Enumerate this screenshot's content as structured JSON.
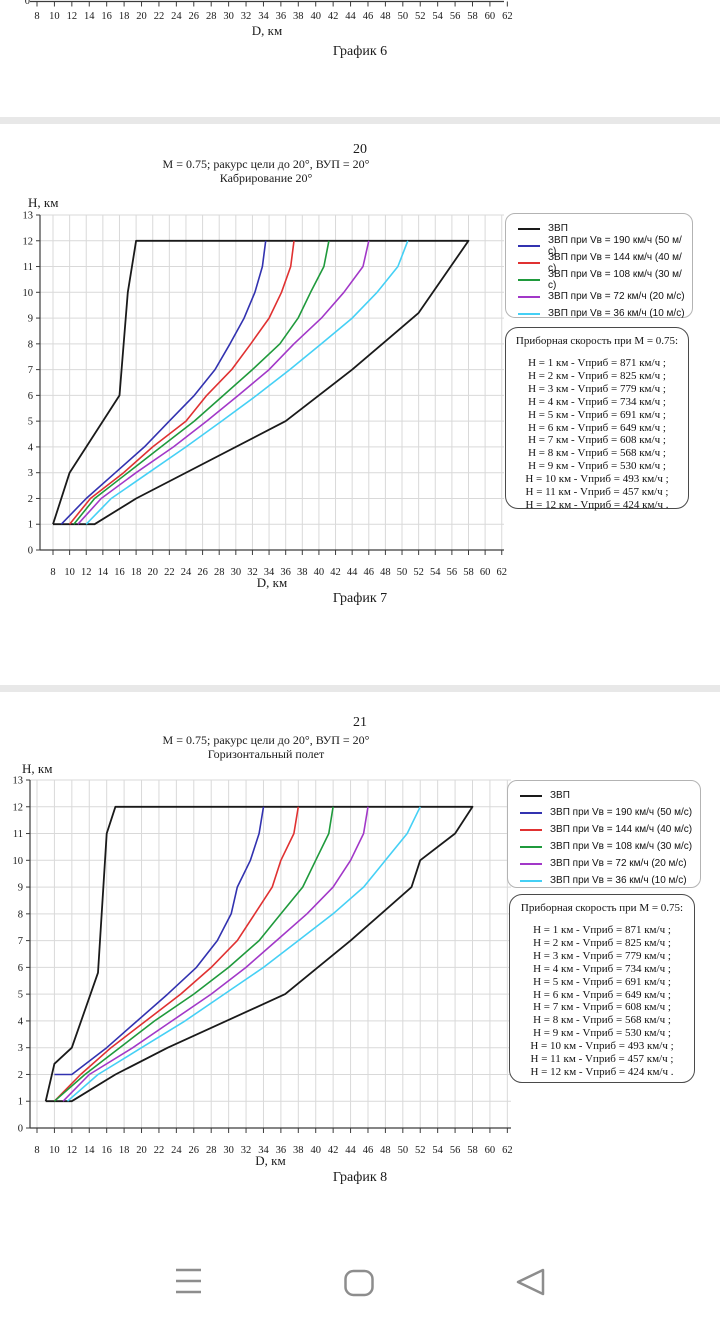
{
  "colors": {
    "zvp": "#1a1a1a",
    "v190": "#3232b0",
    "v144": "#e03131",
    "v108": "#1f9a3c",
    "v72": "#a238c8",
    "v36": "#45d0f5",
    "grid": "#d9d9d9",
    "axis": "#3c3c3c",
    "text": "#1a1a1a",
    "separator": "#e8e8e8",
    "nav_icon": "#8d8d8d"
  },
  "chart6_fragment": {
    "x_ticks": [
      8,
      10,
      12,
      14,
      16,
      18,
      20,
      22,
      24,
      26,
      28,
      30,
      32,
      34,
      36,
      38,
      40,
      42,
      44,
      46,
      48,
      50,
      52,
      54,
      56,
      58,
      60,
      62
    ],
    "xlabel": "D, км",
    "caption": "График 6",
    "clipped_y_tick": "0"
  },
  "page20": {
    "page_number": "20",
    "header_line1": "М = 0.75; ракурс цели до 20°, ВУП = 20°",
    "header_line2": "Кабрирование 20°",
    "caption": "График 7"
  },
  "page21": {
    "page_number": "21",
    "header_line1": "М = 0.75; ракурс цели до 20°, ВУП = 20°",
    "header_line2": "Горизонтальный полет",
    "caption": "График 8"
  },
  "info_box": {
    "title": "Приборная скорость при М = 0.75:",
    "lines": [
      "Н = 1 км - Vприб = 871 км/ч ;",
      "Н = 2 км - Vприб = 825 км/ч ;",
      "Н = 3 км - Vприб = 779 км/ч ;",
      "Н = 4 км - Vприб = 734 км/ч ;",
      "Н = 5 км - Vприб = 691 км/ч ;",
      "Н = 6 км - Vприб = 649 км/ч ;",
      "Н = 7 км - Vприб = 608 км/ч ;",
      "Н = 8 км - Vприб = 568 км/ч ;",
      "Н = 9 км - Vприб = 530 км/ч ;",
      "Н = 10 км - Vприб = 493 км/ч ;",
      "Н = 11 км - Vприб = 457 км/ч ;",
      "Н = 12 км - Vприб = 424 км/ч ."
    ]
  },
  "chart_data": [
    {
      "type": "line",
      "title": "Кабрирование 20°",
      "xlabel": "D, км",
      "ylabel": "Н, км",
      "xlim": [
        6.5,
        62.5
      ],
      "ylim": [
        0,
        13
      ],
      "x_ticks": [
        8,
        10,
        12,
        14,
        16,
        18,
        20,
        22,
        24,
        26,
        28,
        30,
        32,
        34,
        36,
        38,
        40,
        42,
        44,
        46,
        48,
        50,
        52,
        54,
        56,
        58,
        60,
        62
      ],
      "y_ticks": [
        0,
        1,
        2,
        3,
        4,
        5,
        6,
        7,
        8,
        9,
        10,
        11,
        12,
        13
      ],
      "grid": true,
      "legend_position": "right",
      "series": [
        {
          "name": "ЗВП",
          "color_key": "zvp",
          "points": [
            [
              8,
              1
            ],
            [
              13,
              1
            ],
            [
              18,
              2
            ],
            [
              36,
              5
            ],
            [
              44,
              7
            ],
            [
              52,
              9.2
            ],
            [
              58,
              12
            ],
            [
              18,
              12
            ],
            [
              17,
              10
            ],
            [
              16,
              6
            ],
            [
              10,
              3
            ],
            [
              8,
              1
            ]
          ]
        },
        {
          "name": "ЗВП при Vв = 190 км/ч (50 м/с)",
          "color_key": "v190",
          "points": [
            [
              9,
              1
            ],
            [
              12,
              2
            ],
            [
              15.5,
              3
            ],
            [
              19,
              4
            ],
            [
              22,
              5
            ],
            [
              25,
              6
            ],
            [
              27.5,
              7
            ],
            [
              29.3,
              8
            ],
            [
              31,
              9
            ],
            [
              32.3,
              10
            ],
            [
              33.2,
              11
            ],
            [
              33.6,
              12
            ]
          ]
        },
        {
          "name": "ЗВП при Vв = 144 км/ч (40 м/с)",
          "color_key": "v144",
          "points": [
            [
              10,
              1
            ],
            [
              12.5,
              2
            ],
            [
              16.5,
              3
            ],
            [
              20,
              4
            ],
            [
              24,
              5
            ],
            [
              26.5,
              6
            ],
            [
              29.5,
              7
            ],
            [
              31.8,
              8
            ],
            [
              34,
              9
            ],
            [
              35.5,
              10
            ],
            [
              36.6,
              11
            ],
            [
              37,
              12
            ]
          ]
        },
        {
          "name": "ЗВП при Vв = 108 км/ч (30 м/с)",
          "color_key": "v108",
          "points": [
            [
              10.5,
              1
            ],
            [
              13,
              2
            ],
            [
              17,
              3
            ],
            [
              21,
              4
            ],
            [
              25,
              5
            ],
            [
              28.5,
              6
            ],
            [
              32,
              7
            ],
            [
              35.3,
              8
            ],
            [
              37.5,
              9
            ],
            [
              39,
              10
            ],
            [
              40.6,
              11
            ],
            [
              41.2,
              12
            ]
          ]
        },
        {
          "name": "ЗВП при Vв = 72 км/ч (20 м/с)",
          "color_key": "v72",
          "points": [
            [
              11,
              1
            ],
            [
              13.8,
              2
            ],
            [
              18,
              3
            ],
            [
              22.5,
              4
            ],
            [
              26.5,
              5
            ],
            [
              30.3,
              6
            ],
            [
              34,
              7
            ],
            [
              37,
              8
            ],
            [
              40.3,
              9
            ],
            [
              43,
              10
            ],
            [
              45.3,
              11
            ],
            [
              46,
              12
            ]
          ]
        },
        {
          "name": "ЗВП при Vв = 36 км/ч (10 м/с)",
          "color_key": "v36",
          "points": [
            [
              12,
              1
            ],
            [
              15,
              2
            ],
            [
              19.5,
              3
            ],
            [
              24,
              4
            ],
            [
              28.3,
              5
            ],
            [
              32.5,
              6
            ],
            [
              36.5,
              7
            ],
            [
              40.3,
              8
            ],
            [
              44,
              9
            ],
            [
              47,
              10
            ],
            [
              49.5,
              11
            ],
            [
              50.7,
              12
            ]
          ]
        }
      ]
    },
    {
      "type": "line",
      "title": "Горизонтальный полет",
      "xlabel": "D, км",
      "ylabel": "Н, км",
      "xlim": [
        7,
        62.5
      ],
      "ylim": [
        0,
        13
      ],
      "x_ticks": [
        8,
        10,
        12,
        14,
        16,
        18,
        20,
        22,
        24,
        26,
        28,
        30,
        32,
        34,
        36,
        38,
        40,
        42,
        44,
        46,
        48,
        50,
        52,
        54,
        56,
        58,
        60,
        62
      ],
      "y_ticks": [
        0,
        1,
        2,
        3,
        4,
        5,
        6,
        7,
        8,
        9,
        10,
        11,
        12,
        13
      ],
      "grid": true,
      "legend_position": "right",
      "series": [
        {
          "name": "ЗВП",
          "color_key": "zvp",
          "points": [
            [
              9,
              1
            ],
            [
              12,
              1
            ],
            [
              17,
              2
            ],
            [
              23,
              3
            ],
            [
              36.5,
              5
            ],
            [
              44,
              7
            ],
            [
              51,
              9
            ],
            [
              52,
              10
            ],
            [
              56,
              11
            ],
            [
              58,
              12
            ],
            [
              17,
              12
            ],
            [
              16,
              11
            ],
            [
              15,
              5.8
            ],
            [
              12,
              3
            ],
            [
              10,
              2.4
            ],
            [
              9,
              1
            ]
          ]
        },
        {
          "name": "ЗВП при Vв = 190 км/ч (50 м/с)",
          "color_key": "v190",
          "points": [
            [
              10,
              2
            ],
            [
              12,
              2
            ],
            [
              16,
              3
            ],
            [
              19.5,
              4
            ],
            [
              23,
              5
            ],
            [
              26.3,
              6
            ],
            [
              28.7,
              7
            ],
            [
              30.3,
              8
            ],
            [
              31,
              9
            ],
            [
              32.5,
              10
            ],
            [
              33.5,
              11
            ],
            [
              34,
              12
            ]
          ]
        },
        {
          "name": "ЗВП при Vв = 144 км/ч (40 м/с)",
          "color_key": "v144",
          "points": [
            [
              10,
              1
            ],
            [
              13,
              2
            ],
            [
              16.5,
              3
            ],
            [
              20.5,
              4
            ],
            [
              24.5,
              5
            ],
            [
              28,
              6
            ],
            [
              31,
              7
            ],
            [
              33,
              8
            ],
            [
              35,
              9
            ],
            [
              36,
              10
            ],
            [
              37.5,
              11
            ],
            [
              38,
              12
            ]
          ]
        },
        {
          "name": "ЗВП при Vв = 108 км/ч (30 м/с)",
          "color_key": "v108",
          "points": [
            [
              10,
              1
            ],
            [
              13.5,
              2
            ],
            [
              17.5,
              3
            ],
            [
              21.5,
              4
            ],
            [
              26,
              5
            ],
            [
              30,
              6
            ],
            [
              33.5,
              7
            ],
            [
              36,
              8
            ],
            [
              38.5,
              9
            ],
            [
              40,
              10
            ],
            [
              41.5,
              11
            ],
            [
              42,
              12
            ]
          ]
        },
        {
          "name": "ЗВП при Vв = 72 км/ч (20 м/с)",
          "color_key": "v72",
          "points": [
            [
              11,
              1
            ],
            [
              14,
              2
            ],
            [
              19,
              3
            ],
            [
              23.5,
              4
            ],
            [
              28,
              5
            ],
            [
              32,
              6
            ],
            [
              35.5,
              7
            ],
            [
              39,
              8
            ],
            [
              42,
              9
            ],
            [
              44,
              10
            ],
            [
              45.5,
              11
            ],
            [
              46,
              12
            ]
          ]
        },
        {
          "name": "ЗВП при Vв = 36 км/ч (10 м/с)",
          "color_key": "v36",
          "points": [
            [
              11.5,
              1
            ],
            [
              15,
              2
            ],
            [
              20,
              3
            ],
            [
              25,
              4
            ],
            [
              29.5,
              5
            ],
            [
              34,
              6
            ],
            [
              38,
              7
            ],
            [
              42,
              8
            ],
            [
              45.5,
              9
            ],
            [
              48,
              10
            ],
            [
              50.5,
              11
            ],
            [
              52,
              12
            ]
          ]
        }
      ]
    }
  ],
  "nav_bar": {
    "recents": "menu",
    "home": "home",
    "back": "back"
  }
}
